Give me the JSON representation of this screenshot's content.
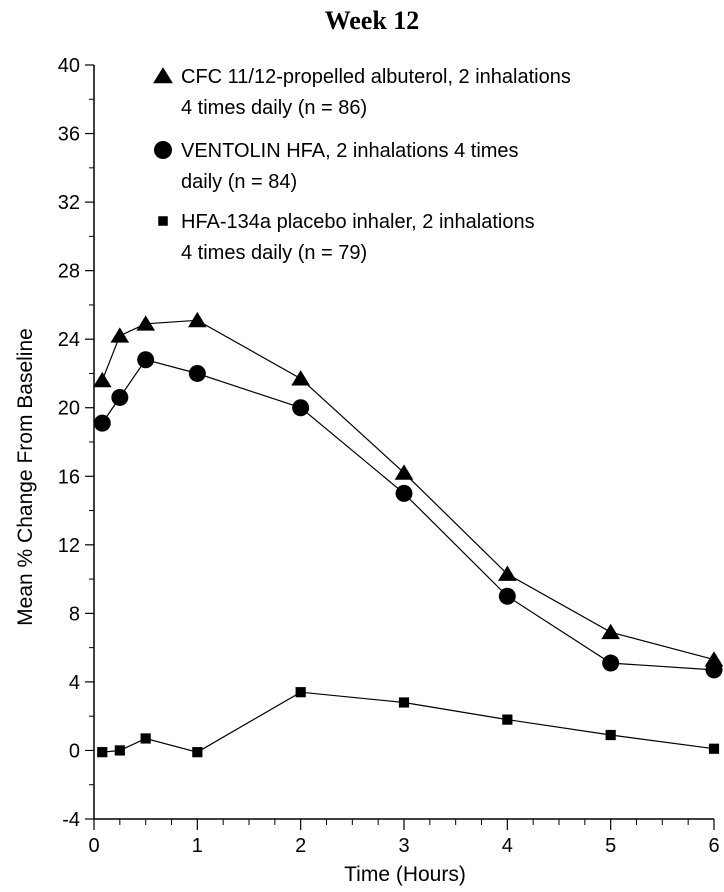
{
  "chart_data": {
    "type": "line",
    "title": "Week 12",
    "xlabel": "Time (Hours)",
    "ylabel": "Mean % Change From Baseline",
    "xlim": [
      0,
      6
    ],
    "ylim": [
      -4,
      40
    ],
    "xticks": [
      0,
      1,
      2,
      3,
      4,
      5,
      6
    ],
    "yticks": [
      -4,
      0,
      4,
      8,
      12,
      16,
      20,
      24,
      28,
      32,
      36,
      40
    ],
    "grid": false,
    "legend_position": "top-left",
    "x": [
      0.08,
      0.25,
      0.5,
      1,
      2,
      3,
      4,
      5,
      6
    ],
    "series": [
      {
        "name": "CFC 11/12-propelled albuterol, 2 inhalations 4 times daily (n = 86)",
        "legend_lines": [
          "CFC 11/12-propelled albuterol, 2 inhalations",
          "4 times daily (n = 86)"
        ],
        "marker": "triangle",
        "values": [
          21.6,
          24.2,
          24.9,
          25.1,
          21.7,
          16.2,
          10.3,
          6.9,
          5.3
        ]
      },
      {
        "name": "VENTOLIN HFA, 2 inhalations 4 times daily (n = 84)",
        "legend_lines": [
          "VENTOLIN HFA, 2 inhalations 4 times",
          "daily (n = 84)"
        ],
        "marker": "circle",
        "values": [
          19.1,
          20.6,
          22.8,
          22.0,
          20.0,
          15.0,
          9.0,
          5.1,
          4.7
        ]
      },
      {
        "name": "HFA-134a placebo inhaler, 2 inhalations 4 times daily (n = 79)",
        "legend_lines": [
          "HFA-134a placebo inhaler, 2 inhalations",
          "4 times daily (n = 79)"
        ],
        "marker": "square",
        "values": [
          -0.1,
          0.0,
          0.7,
          -0.1,
          3.4,
          2.8,
          1.8,
          0.9,
          0.1
        ]
      }
    ]
  }
}
